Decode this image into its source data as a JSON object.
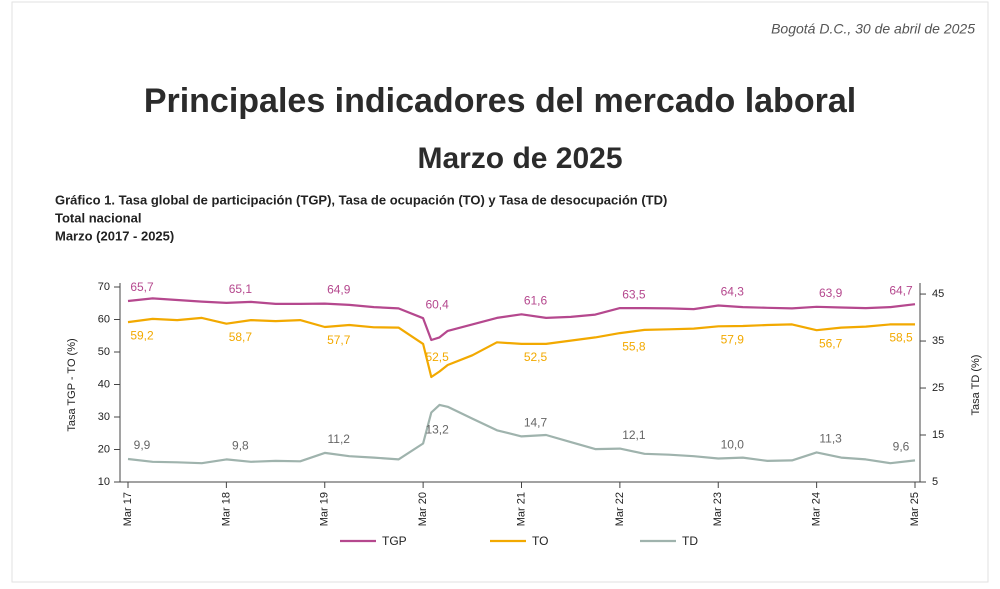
{
  "header": {
    "date_line": "Bogotá D.C., 30 de abril de 2025",
    "title": "Principales indicadores del mercado laboral",
    "subtitle": "Marzo de 2025"
  },
  "chart_data": {
    "type": "line",
    "title": "Gráfico 1. Tasa global de participación (TGP), Tasa de ocupación (TO) y Tasa de desocupación (TD)",
    "subtitle": "Total nacional",
    "period": "Marzo (2017 - 2025)",
    "ylabel": "Tasa TGP - TO (%)",
    "y2label": "Tasa TD (%)",
    "x": [
      0,
      3,
      6,
      9,
      12,
      15,
      18,
      21,
      24,
      27,
      30,
      33,
      36,
      37,
      38,
      39,
      42,
      45,
      48,
      51,
      54,
      57,
      60,
      63,
      66,
      69,
      72,
      75,
      78,
      81,
      84,
      87,
      90,
      93,
      96
    ],
    "xlim": [
      0,
      96
    ],
    "xticks": [
      {
        "value": 0,
        "label": "Mar 17"
      },
      {
        "value": 12,
        "label": "Mar 18"
      },
      {
        "value": 24,
        "label": "Mar 19"
      },
      {
        "value": 36,
        "label": "Mar 20"
      },
      {
        "value": 48,
        "label": "Mar 21"
      },
      {
        "value": 60,
        "label": "Mar 22"
      },
      {
        "value": 72,
        "label": "Mar 23"
      },
      {
        "value": 84,
        "label": "Mar 24"
      },
      {
        "value": 96,
        "label": "Mar 25"
      }
    ],
    "ylim": [
      10,
      70
    ],
    "yticks": [
      10,
      20,
      30,
      40,
      50,
      60,
      70
    ],
    "y2lim": [
      5,
      46.5
    ],
    "y2ticks": [
      5,
      15,
      25,
      35,
      45
    ],
    "series": [
      {
        "name": "TGP",
        "color": "#b5488e",
        "values": [
          65.7,
          66.5,
          66.0,
          65.5,
          65.1,
          65.4,
          64.8,
          64.8,
          64.9,
          64.5,
          63.8,
          63.4,
          60.4,
          53.7,
          54.5,
          56.5,
          58.5,
          60.5,
          61.6,
          60.5,
          60.8,
          61.5,
          63.5,
          63.5,
          63.4,
          63.2,
          64.3,
          63.8,
          63.6,
          63.4,
          63.9,
          63.7,
          63.5,
          63.8,
          64.7
        ],
        "value_labels": [
          "65,7",
          null,
          null,
          null,
          "65,1",
          null,
          null,
          null,
          "64,9",
          null,
          null,
          null,
          "60,4",
          null,
          null,
          null,
          null,
          null,
          "61,6",
          null,
          null,
          null,
          "63,5",
          null,
          null,
          null,
          "64,3",
          null,
          null,
          null,
          "63,9",
          null,
          null,
          null,
          "64,7"
        ]
      },
      {
        "name": "TO",
        "color": "#f2a900",
        "values": [
          59.2,
          60.2,
          59.8,
          60.5,
          58.7,
          59.8,
          59.5,
          59.8,
          57.7,
          58.3,
          57.6,
          57.5,
          52.5,
          42.3,
          44,
          46,
          49,
          53,
          52.5,
          52.5,
          53.5,
          54.5,
          55.8,
          56.8,
          57,
          57.2,
          57.9,
          58,
          58.3,
          58.5,
          56.7,
          57.5,
          57.8,
          58.5,
          58.5
        ],
        "value_labels": [
          "59,2",
          null,
          null,
          null,
          "58,7",
          null,
          null,
          null,
          "57,7",
          null,
          null,
          null,
          "52,5",
          null,
          null,
          null,
          null,
          null,
          "52,5",
          null,
          null,
          null,
          "55,8",
          null,
          null,
          null,
          "57,9",
          null,
          null,
          null,
          "56,7",
          null,
          null,
          null,
          "58,5"
        ]
      },
      {
        "name": "TD",
        "color": "#9fb3ad",
        "axis": "y2",
        "values": [
          9.9,
          9.3,
          9.2,
          9.0,
          9.8,
          9.3,
          9.5,
          9.4,
          11.2,
          10.5,
          10.2,
          9.8,
          13.2,
          19.8,
          21.4,
          21.0,
          18.5,
          16.0,
          14.7,
          15.0,
          13.5,
          12.0,
          12.1,
          11.0,
          10.8,
          10.5,
          10.0,
          10.2,
          9.5,
          9.6,
          11.3,
          10.2,
          9.8,
          9.0,
          9.6
        ],
        "value_labels": [
          "9,9",
          null,
          null,
          null,
          "9,8",
          null,
          null,
          null,
          "11,2",
          null,
          null,
          null,
          "13,2",
          null,
          null,
          null,
          null,
          null,
          "14,7",
          null,
          null,
          null,
          "12,1",
          null,
          null,
          null,
          "10,0",
          null,
          null,
          null,
          "11,3",
          null,
          null,
          null,
          "9,6"
        ]
      }
    ],
    "legend": "bottom"
  }
}
